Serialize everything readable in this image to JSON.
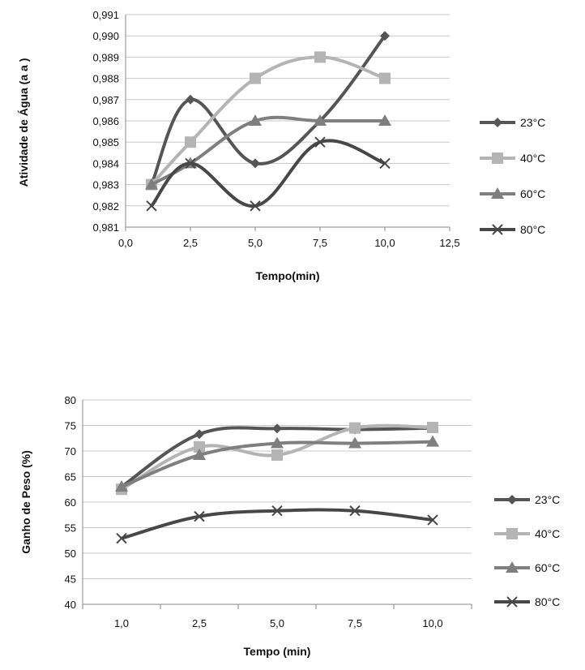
{
  "chart_data": [
    {
      "type": "line",
      "xlabel": "Tempo(min)",
      "ylabel": "Atividade de Água (a a )",
      "xlim": [
        0,
        12.5
      ],
      "ylim": [
        0.981,
        0.991
      ],
      "x_ticks": [
        "0,0",
        "2,5",
        "5,0",
        "7,5",
        "10,0",
        "12,5"
      ],
      "y_ticks": [
        "0,981",
        "0,982",
        "0,983",
        "0,984",
        "0,985",
        "0,986",
        "0,987",
        "0,988",
        "0,989",
        "0,990",
        "0,991"
      ],
      "grid": "horizontal",
      "legend_position": "right",
      "series": [
        {
          "name": "23°C",
          "marker": "diamond",
          "color": "#555555",
          "x": [
            1,
            2.5,
            5,
            7.5,
            10
          ],
          "y": [
            0.983,
            0.987,
            0.984,
            0.986,
            0.99
          ]
        },
        {
          "name": "40°C",
          "marker": "square",
          "color": "#b4b4b4",
          "x": [
            1,
            2.5,
            5,
            7.5,
            10
          ],
          "y": [
            0.983,
            0.985,
            0.988,
            0.989,
            0.988
          ]
        },
        {
          "name": "60°C",
          "marker": "triangle",
          "color": "#7f7f7f",
          "x": [
            1,
            2.5,
            5,
            7.5,
            10
          ],
          "y": [
            0.983,
            0.984,
            0.986,
            0.986,
            0.986
          ]
        },
        {
          "name": "80°C",
          "marker": "x",
          "color": "#474747",
          "x": [
            1,
            2.5,
            5,
            7.5,
            10
          ],
          "y": [
            0.982,
            0.984,
            0.982,
            0.985,
            0.984
          ]
        }
      ]
    },
    {
      "type": "line",
      "xlabel": "Tempo (min)",
      "ylabel": "Ganho de Peso (%)",
      "categories": [
        "1,0",
        "2,5",
        "5,0",
        "7,5",
        "10,0"
      ],
      "ylim": [
        40,
        80
      ],
      "y_ticks": [
        "40",
        "45",
        "50",
        "55",
        "60",
        "65",
        "70",
        "75",
        "80"
      ],
      "grid": "horizontal",
      "legend_position": "right",
      "series": [
        {
          "name": "23°C",
          "marker": "diamond",
          "color": "#555555",
          "values": [
            63.0,
            73.3,
            74.4,
            74.2,
            74.5
          ]
        },
        {
          "name": "40°C",
          "marker": "square",
          "color": "#b4b4b4",
          "values": [
            62.5,
            70.8,
            69.2,
            74.5,
            74.6
          ]
        },
        {
          "name": "60°C",
          "marker": "triangle",
          "color": "#7f7f7f",
          "values": [
            63.0,
            69.2,
            71.5,
            71.5,
            71.8
          ]
        },
        {
          "name": "80°C",
          "marker": "x",
          "color": "#474747",
          "values": [
            52.9,
            57.2,
            58.3,
            58.3,
            56.5
          ]
        }
      ]
    }
  ]
}
